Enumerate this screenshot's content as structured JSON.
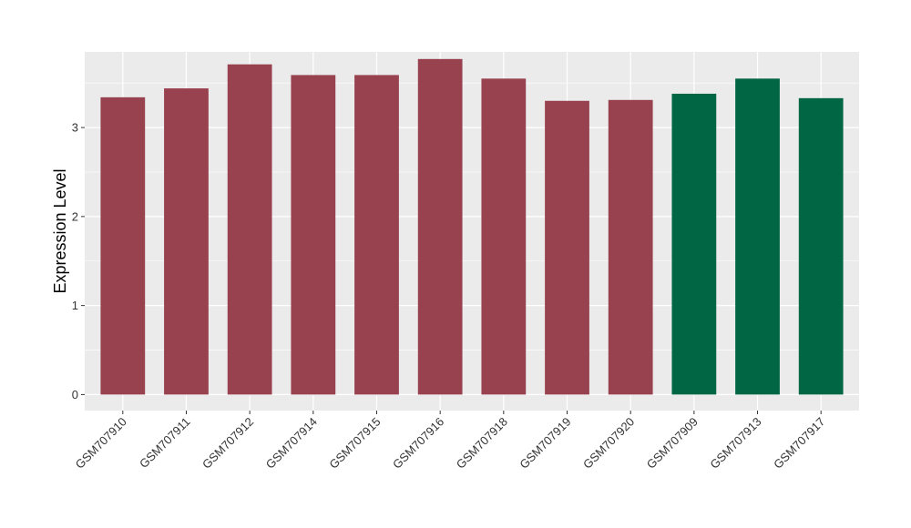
{
  "chart_data": {
    "type": "bar",
    "title": "",
    "xlabel": "",
    "ylabel": "Expression Level",
    "ylim": [
      -0.18,
      3.85
    ],
    "yticks": [
      0,
      1,
      2,
      3
    ],
    "grid": true,
    "categories": [
      "GSM707910",
      "GSM707911",
      "GSM707912",
      "GSM707914",
      "GSM707915",
      "GSM707916",
      "GSM707918",
      "GSM707919",
      "GSM707920",
      "GSM707909",
      "GSM707913",
      "GSM707917"
    ],
    "values": [
      3.34,
      3.44,
      3.71,
      3.59,
      3.59,
      3.77,
      3.55,
      3.3,
      3.31,
      3.38,
      3.55,
      3.33
    ],
    "groups": [
      0,
      0,
      0,
      0,
      0,
      0,
      0,
      0,
      0,
      1,
      1,
      1
    ],
    "colors": [
      "#98414f",
      "#006644"
    ],
    "panel_background": "#ebebeb",
    "grid_color": "#ffffff"
  }
}
